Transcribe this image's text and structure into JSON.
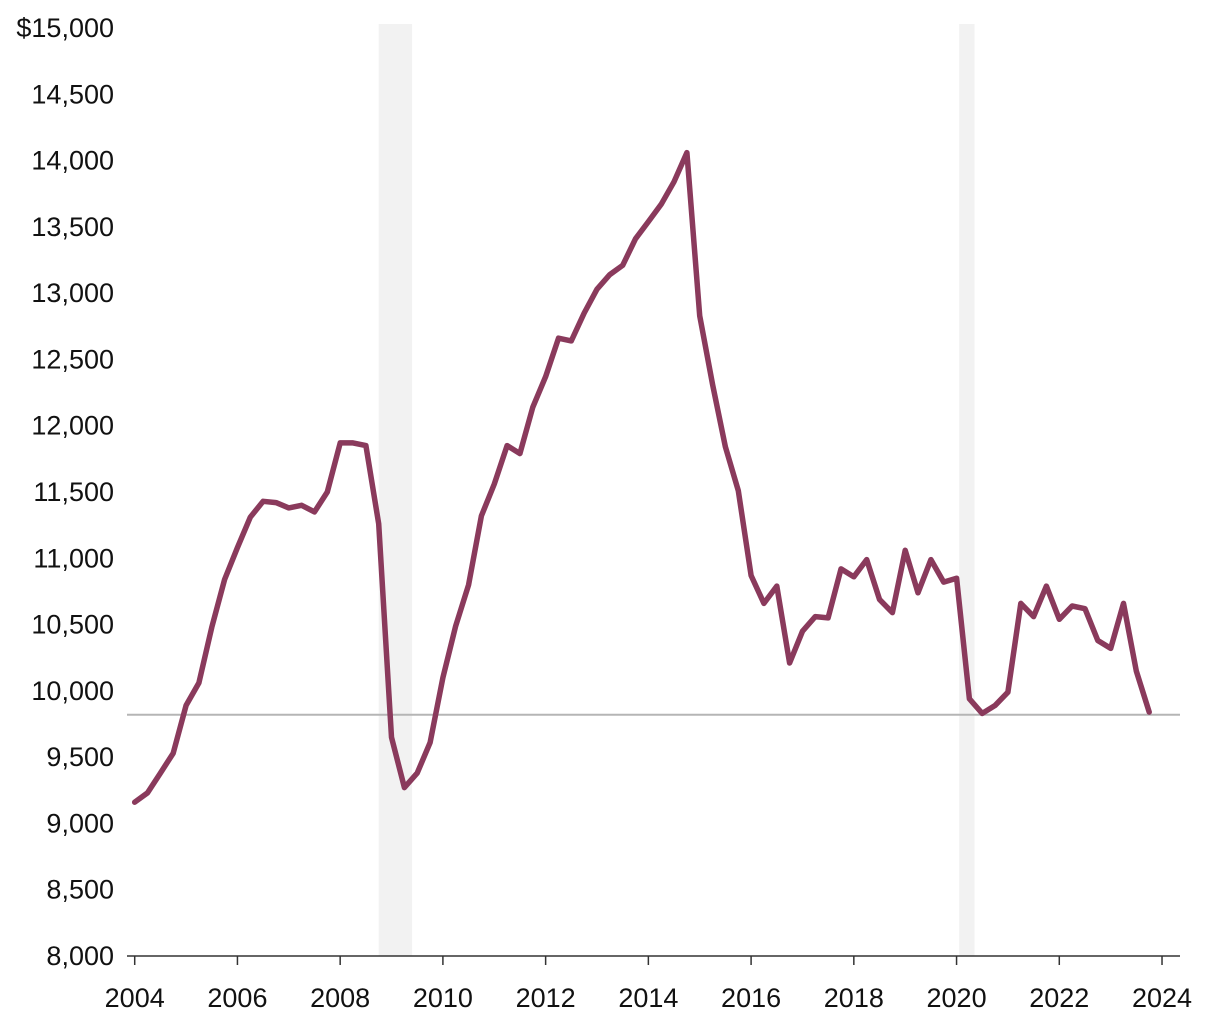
{
  "chart_data": {
    "type": "line",
    "title": "",
    "xlabel": "",
    "ylabel": "",
    "xlim": [
      2003.85,
      2024.35
    ],
    "ylim": [
      8000,
      15000
    ],
    "y_ticks": [
      {
        "value": 15000,
        "label": "$15,000"
      },
      {
        "value": 14500,
        "label": "14,500"
      },
      {
        "value": 14000,
        "label": "14,000"
      },
      {
        "value": 13500,
        "label": "13,500"
      },
      {
        "value": 13000,
        "label": "13,000"
      },
      {
        "value": 12500,
        "label": "12,500"
      },
      {
        "value": 12000,
        "label": "12,000"
      },
      {
        "value": 11500,
        "label": "11,500"
      },
      {
        "value": 11000,
        "label": "11,000"
      },
      {
        "value": 10500,
        "label": "10,500"
      },
      {
        "value": 10000,
        "label": "10,000"
      },
      {
        "value": 9500,
        "label": "9,500"
      },
      {
        "value": 9000,
        "label": "9,000"
      },
      {
        "value": 8500,
        "label": "8,500"
      },
      {
        "value": 8000,
        "label": "8,000"
      }
    ],
    "x_ticks": [
      {
        "value": 2004,
        "label": "2004"
      },
      {
        "value": 2006,
        "label": "2006"
      },
      {
        "value": 2008,
        "label": "2008"
      },
      {
        "value": 2010,
        "label": "2010"
      },
      {
        "value": 2012,
        "label": "2012"
      },
      {
        "value": 2014,
        "label": "2014"
      },
      {
        "value": 2016,
        "label": "2016"
      },
      {
        "value": 2018,
        "label": "2018"
      },
      {
        "value": 2020,
        "label": "2020"
      },
      {
        "value": 2022,
        "label": "2022"
      },
      {
        "value": 2024,
        "label": "2024"
      }
    ],
    "reference_line": 9820,
    "recession_bands": [
      [
        2008.75,
        2009.4
      ],
      [
        2020.05,
        2020.35
      ]
    ],
    "series": [
      {
        "name": "Value",
        "color": "#8a3a5c",
        "x": [
          2004.0,
          2004.25,
          2004.5,
          2004.75,
          2005.0,
          2005.25,
          2005.5,
          2005.75,
          2006.0,
          2006.25,
          2006.5,
          2006.75,
          2007.0,
          2007.25,
          2007.5,
          2007.75,
          2008.0,
          2008.25,
          2008.5,
          2008.75,
          2009.0,
          2009.25,
          2009.5,
          2009.75,
          2010.0,
          2010.25,
          2010.5,
          2010.75,
          2011.0,
          2011.25,
          2011.5,
          2011.75,
          2012.0,
          2012.25,
          2012.5,
          2012.75,
          2013.0,
          2013.25,
          2013.5,
          2013.75,
          2014.0,
          2014.25,
          2014.5,
          2014.75,
          2015.0,
          2015.25,
          2015.5,
          2015.75,
          2016.0,
          2016.25,
          2016.5,
          2016.75,
          2017.0,
          2017.25,
          2017.5,
          2017.75,
          2018.0,
          2018.25,
          2018.5,
          2018.75,
          2019.0,
          2019.25,
          2019.5,
          2019.75,
          2020.0,
          2020.25,
          2020.5,
          2020.75,
          2021.0,
          2021.25,
          2021.5,
          2021.75,
          2022.0,
          2022.25,
          2022.5,
          2022.75,
          2023.0,
          2023.25,
          2023.5,
          2023.75
        ],
        "values": [
          9160,
          9230,
          9380,
          9530,
          9890,
          10060,
          10480,
          10840,
          11080,
          11310,
          11430,
          11420,
          11380,
          11400,
          11350,
          11500,
          11870,
          11870,
          11850,
          11260,
          9650,
          9270,
          9380,
          9610,
          10100,
          10490,
          10800,
          11320,
          11560,
          11850,
          11790,
          12140,
          12370,
          12660,
          12640,
          12850,
          13030,
          13140,
          13210,
          13410,
          13540,
          13670,
          13840,
          14060,
          12830,
          12310,
          11840,
          11510,
          10870,
          10660,
          10790,
          10210,
          10450,
          10560,
          10550,
          10920,
          10860,
          10990,
          10690,
          10590,
          11060,
          10740,
          10990,
          10820,
          10850,
          9940,
          9830,
          9890,
          9990,
          10660,
          10560,
          10790,
          10540,
          10640,
          10620,
          10380,
          10320,
          10660,
          10150,
          9840
        ]
      }
    ]
  }
}
